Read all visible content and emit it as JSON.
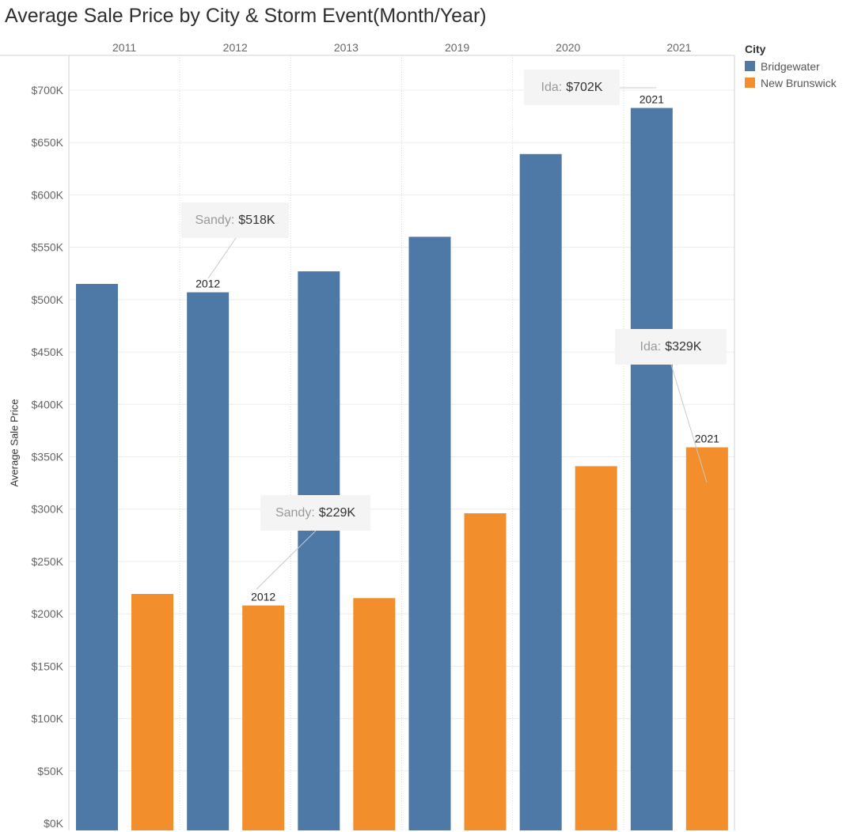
{
  "chart_data": {
    "type": "bar",
    "title": "Average Sale Price by City & Storm Event(Month/Year)",
    "ylabel": "Average Sale Price",
    "xlabel": "",
    "categories": [
      "2011",
      "2012",
      "2013",
      "2019",
      "2020",
      "2021"
    ],
    "ylim": [
      0,
      730000
    ],
    "yticks": [
      0,
      50000,
      100000,
      150000,
      200000,
      250000,
      300000,
      350000,
      400000,
      450000,
      500000,
      550000,
      600000,
      650000,
      700000
    ],
    "ytick_labels": [
      "$0K",
      "$50K",
      "$100K",
      "$150K",
      "$200K",
      "$250K",
      "$300K",
      "$350K",
      "$400K",
      "$450K",
      "$500K",
      "$550K",
      "$600K",
      "$650K",
      "$700K"
    ],
    "legend_title": "City",
    "legend_position": "top-right",
    "grid": true,
    "series": [
      {
        "name": "Bridgewater",
        "color": "#4e79a7",
        "values": [
          515000,
          507000,
          527000,
          560000,
          639000,
          683000
        ]
      },
      {
        "name": "New Brunswick",
        "color": "#f28e2b",
        "values": [
          219000,
          208000,
          215000,
          296000,
          341000,
          359000
        ]
      }
    ],
    "mark_labels": [
      {
        "series": 0,
        "category": 1,
        "text": "2012"
      },
      {
        "series": 1,
        "category": 1,
        "text": "2012"
      },
      {
        "series": 0,
        "category": 5,
        "text": "2021"
      },
      {
        "series": 1,
        "category": 5,
        "text": "2021"
      }
    ],
    "annotations": [
      {
        "series": 0,
        "category": 1,
        "label": "Sandy:",
        "value": "$518K"
      },
      {
        "series": 1,
        "category": 1,
        "label": "Sandy:",
        "value": "$229K"
      },
      {
        "series": 0,
        "category": 5,
        "label": "Ida:",
        "value": "$702K"
      },
      {
        "series": 1,
        "category": 5,
        "label": "Ida:",
        "value": "$329K"
      }
    ]
  }
}
